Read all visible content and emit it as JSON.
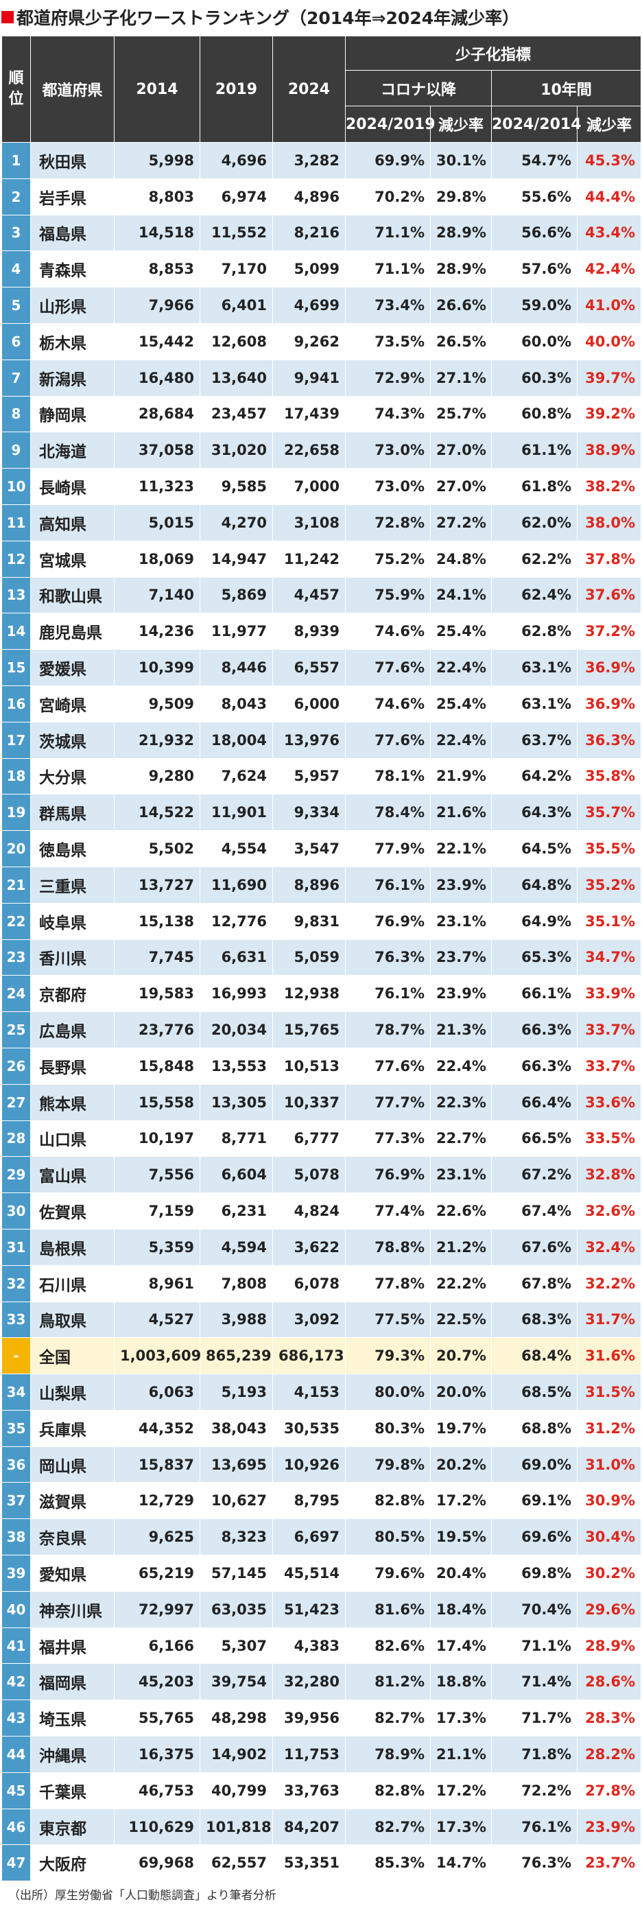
{
  "title": "都道府県少子化ワーストランキング（2014年⇒2024年減少率）",
  "colors": {
    "title_square": "#e60012",
    "header_bg": "#3b3b3b",
    "rank_bg": "#4a9ac9",
    "row_alt_bg": "#d9e8f3",
    "national_rank_bg": "#f4b400",
    "national_row_bg": "#fdf5d3",
    "decline_text": "#e0261d"
  },
  "headers": {
    "rank": "順位",
    "prefecture": "都道府県",
    "y2014": "2014",
    "y2019": "2019",
    "y2024": "2024",
    "indicator_group": "少子化指標",
    "covid_group": "コロナ以降",
    "ten_year_group": "10年間",
    "ratio_2024_2019": "2024/2019",
    "decline_rate_covid": "減少率",
    "ratio_2024_2014": "2024/2014",
    "decline_rate_10y": "減少率"
  },
  "rows": [
    {
      "rank": "1",
      "pref": "秋田県",
      "v2014": "5,998",
      "v2019": "4,696",
      "v2024": "3,282",
      "r19": "69.9%",
      "d19": "30.1%",
      "r14": "54.7%",
      "d14": "45.3%"
    },
    {
      "rank": "2",
      "pref": "岩手県",
      "v2014": "8,803",
      "v2019": "6,974",
      "v2024": "4,896",
      "r19": "70.2%",
      "d19": "29.8%",
      "r14": "55.6%",
      "d14": "44.4%"
    },
    {
      "rank": "3",
      "pref": "福島県",
      "v2014": "14,518",
      "v2019": "11,552",
      "v2024": "8,216",
      "r19": "71.1%",
      "d19": "28.9%",
      "r14": "56.6%",
      "d14": "43.4%"
    },
    {
      "rank": "4",
      "pref": "青森県",
      "v2014": "8,853",
      "v2019": "7,170",
      "v2024": "5,099",
      "r19": "71.1%",
      "d19": "28.9%",
      "r14": "57.6%",
      "d14": "42.4%"
    },
    {
      "rank": "5",
      "pref": "山形県",
      "v2014": "7,966",
      "v2019": "6,401",
      "v2024": "4,699",
      "r19": "73.4%",
      "d19": "26.6%",
      "r14": "59.0%",
      "d14": "41.0%"
    },
    {
      "rank": "6",
      "pref": "栃木県",
      "v2014": "15,442",
      "v2019": "12,608",
      "v2024": "9,262",
      "r19": "73.5%",
      "d19": "26.5%",
      "r14": "60.0%",
      "d14": "40.0%"
    },
    {
      "rank": "7",
      "pref": "新潟県",
      "v2014": "16,480",
      "v2019": "13,640",
      "v2024": "9,941",
      "r19": "72.9%",
      "d19": "27.1%",
      "r14": "60.3%",
      "d14": "39.7%"
    },
    {
      "rank": "8",
      "pref": "静岡県",
      "v2014": "28,684",
      "v2019": "23,457",
      "v2024": "17,439",
      "r19": "74.3%",
      "d19": "25.7%",
      "r14": "60.8%",
      "d14": "39.2%"
    },
    {
      "rank": "9",
      "pref": "北海道",
      "v2014": "37,058",
      "v2019": "31,020",
      "v2024": "22,658",
      "r19": "73.0%",
      "d19": "27.0%",
      "r14": "61.1%",
      "d14": "38.9%"
    },
    {
      "rank": "10",
      "pref": "長崎県",
      "v2014": "11,323",
      "v2019": "9,585",
      "v2024": "7,000",
      "r19": "73.0%",
      "d19": "27.0%",
      "r14": "61.8%",
      "d14": "38.2%"
    },
    {
      "rank": "11",
      "pref": "高知県",
      "v2014": "5,015",
      "v2019": "4,270",
      "v2024": "3,108",
      "r19": "72.8%",
      "d19": "27.2%",
      "r14": "62.0%",
      "d14": "38.0%"
    },
    {
      "rank": "12",
      "pref": "宮城県",
      "v2014": "18,069",
      "v2019": "14,947",
      "v2024": "11,242",
      "r19": "75.2%",
      "d19": "24.8%",
      "r14": "62.2%",
      "d14": "37.8%"
    },
    {
      "rank": "13",
      "pref": "和歌山県",
      "v2014": "7,140",
      "v2019": "5,869",
      "v2024": "4,457",
      "r19": "75.9%",
      "d19": "24.1%",
      "r14": "62.4%",
      "d14": "37.6%"
    },
    {
      "rank": "14",
      "pref": "鹿児島県",
      "v2014": "14,236",
      "v2019": "11,977",
      "v2024": "8,939",
      "r19": "74.6%",
      "d19": "25.4%",
      "r14": "62.8%",
      "d14": "37.2%"
    },
    {
      "rank": "15",
      "pref": "愛媛県",
      "v2014": "10,399",
      "v2019": "8,446",
      "v2024": "6,557",
      "r19": "77.6%",
      "d19": "22.4%",
      "r14": "63.1%",
      "d14": "36.9%"
    },
    {
      "rank": "16",
      "pref": "宮崎県",
      "v2014": "9,509",
      "v2019": "8,043",
      "v2024": "6,000",
      "r19": "74.6%",
      "d19": "25.4%",
      "r14": "63.1%",
      "d14": "36.9%"
    },
    {
      "rank": "17",
      "pref": "茨城県",
      "v2014": "21,932",
      "v2019": "18,004",
      "v2024": "13,976",
      "r19": "77.6%",
      "d19": "22.4%",
      "r14": "63.7%",
      "d14": "36.3%"
    },
    {
      "rank": "18",
      "pref": "大分県",
      "v2014": "9,280",
      "v2019": "7,624",
      "v2024": "5,957",
      "r19": "78.1%",
      "d19": "21.9%",
      "r14": "64.2%",
      "d14": "35.8%"
    },
    {
      "rank": "19",
      "pref": "群馬県",
      "v2014": "14,522",
      "v2019": "11,901",
      "v2024": "9,334",
      "r19": "78.4%",
      "d19": "21.6%",
      "r14": "64.3%",
      "d14": "35.7%"
    },
    {
      "rank": "20",
      "pref": "徳島県",
      "v2014": "5,502",
      "v2019": "4,554",
      "v2024": "3,547",
      "r19": "77.9%",
      "d19": "22.1%",
      "r14": "64.5%",
      "d14": "35.5%"
    },
    {
      "rank": "21",
      "pref": "三重県",
      "v2014": "13,727",
      "v2019": "11,690",
      "v2024": "8,896",
      "r19": "76.1%",
      "d19": "23.9%",
      "r14": "64.8%",
      "d14": "35.2%"
    },
    {
      "rank": "22",
      "pref": "岐阜県",
      "v2014": "15,138",
      "v2019": "12,776",
      "v2024": "9,831",
      "r19": "76.9%",
      "d19": "23.1%",
      "r14": "64.9%",
      "d14": "35.1%"
    },
    {
      "rank": "23",
      "pref": "香川県",
      "v2014": "7,745",
      "v2019": "6,631",
      "v2024": "5,059",
      "r19": "76.3%",
      "d19": "23.7%",
      "r14": "65.3%",
      "d14": "34.7%"
    },
    {
      "rank": "24",
      "pref": "京都府",
      "v2014": "19,583",
      "v2019": "16,993",
      "v2024": "12,938",
      "r19": "76.1%",
      "d19": "23.9%",
      "r14": "66.1%",
      "d14": "33.9%"
    },
    {
      "rank": "25",
      "pref": "広島県",
      "v2014": "23,776",
      "v2019": "20,034",
      "v2024": "15,765",
      "r19": "78.7%",
      "d19": "21.3%",
      "r14": "66.3%",
      "d14": "33.7%"
    },
    {
      "rank": "26",
      "pref": "長野県",
      "v2014": "15,848",
      "v2019": "13,553",
      "v2024": "10,513",
      "r19": "77.6%",
      "d19": "22.4%",
      "r14": "66.3%",
      "d14": "33.7%"
    },
    {
      "rank": "27",
      "pref": "熊本県",
      "v2014": "15,558",
      "v2019": "13,305",
      "v2024": "10,337",
      "r19": "77.7%",
      "d19": "22.3%",
      "r14": "66.4%",
      "d14": "33.6%"
    },
    {
      "rank": "28",
      "pref": "山口県",
      "v2014": "10,197",
      "v2019": "8,771",
      "v2024": "6,777",
      "r19": "77.3%",
      "d19": "22.7%",
      "r14": "66.5%",
      "d14": "33.5%"
    },
    {
      "rank": "29",
      "pref": "富山県",
      "v2014": "7,556",
      "v2019": "6,604",
      "v2024": "5,078",
      "r19": "76.9%",
      "d19": "23.1%",
      "r14": "67.2%",
      "d14": "32.8%"
    },
    {
      "rank": "30",
      "pref": "佐賀県",
      "v2014": "7,159",
      "v2019": "6,231",
      "v2024": "4,824",
      "r19": "77.4%",
      "d19": "22.6%",
      "r14": "67.4%",
      "d14": "32.6%"
    },
    {
      "rank": "31",
      "pref": "島根県",
      "v2014": "5,359",
      "v2019": "4,594",
      "v2024": "3,622",
      "r19": "78.8%",
      "d19": "21.2%",
      "r14": "67.6%",
      "d14": "32.4%"
    },
    {
      "rank": "32",
      "pref": "石川県",
      "v2014": "8,961",
      "v2019": "7,808",
      "v2024": "6,078",
      "r19": "77.8%",
      "d19": "22.2%",
      "r14": "67.8%",
      "d14": "32.2%"
    },
    {
      "rank": "33",
      "pref": "鳥取県",
      "v2014": "4,527",
      "v2019": "3,988",
      "v2024": "3,092",
      "r19": "77.5%",
      "d19": "22.5%",
      "r14": "68.3%",
      "d14": "31.7%"
    },
    {
      "rank": "-",
      "pref": "全国",
      "v2014": "1,003,609",
      "v2019": "865,239",
      "v2024": "686,173",
      "r19": "79.3%",
      "d19": "20.7%",
      "r14": "68.4%",
      "d14": "31.6%",
      "national": true
    },
    {
      "rank": "34",
      "pref": "山梨県",
      "v2014": "6,063",
      "v2019": "5,193",
      "v2024": "4,153",
      "r19": "80.0%",
      "d19": "20.0%",
      "r14": "68.5%",
      "d14": "31.5%"
    },
    {
      "rank": "35",
      "pref": "兵庫県",
      "v2014": "44,352",
      "v2019": "38,043",
      "v2024": "30,535",
      "r19": "80.3%",
      "d19": "19.7%",
      "r14": "68.8%",
      "d14": "31.2%"
    },
    {
      "rank": "36",
      "pref": "岡山県",
      "v2014": "15,837",
      "v2019": "13,695",
      "v2024": "10,926",
      "r19": "79.8%",
      "d19": "20.2%",
      "r14": "69.0%",
      "d14": "31.0%"
    },
    {
      "rank": "37",
      "pref": "滋賀県",
      "v2014": "12,729",
      "v2019": "10,627",
      "v2024": "8,795",
      "r19": "82.8%",
      "d19": "17.2%",
      "r14": "69.1%",
      "d14": "30.9%"
    },
    {
      "rank": "38",
      "pref": "奈良県",
      "v2014": "9,625",
      "v2019": "8,323",
      "v2024": "6,697",
      "r19": "80.5%",
      "d19": "19.5%",
      "r14": "69.6%",
      "d14": "30.4%"
    },
    {
      "rank": "39",
      "pref": "愛知県",
      "v2014": "65,219",
      "v2019": "57,145",
      "v2024": "45,514",
      "r19": "79.6%",
      "d19": "20.4%",
      "r14": "69.8%",
      "d14": "30.2%"
    },
    {
      "rank": "40",
      "pref": "神奈川県",
      "v2014": "72,997",
      "v2019": "63,035",
      "v2024": "51,423",
      "r19": "81.6%",
      "d19": "18.4%",
      "r14": "70.4%",
      "d14": "29.6%"
    },
    {
      "rank": "41",
      "pref": "福井県",
      "v2014": "6,166",
      "v2019": "5,307",
      "v2024": "4,383",
      "r19": "82.6%",
      "d19": "17.4%",
      "r14": "71.1%",
      "d14": "28.9%"
    },
    {
      "rank": "42",
      "pref": "福岡県",
      "v2014": "45,203",
      "v2019": "39,754",
      "v2024": "32,280",
      "r19": "81.2%",
      "d19": "18.8%",
      "r14": "71.4%",
      "d14": "28.6%"
    },
    {
      "rank": "43",
      "pref": "埼玉県",
      "v2014": "55,765",
      "v2019": "48,298",
      "v2024": "39,956",
      "r19": "82.7%",
      "d19": "17.3%",
      "r14": "71.7%",
      "d14": "28.3%"
    },
    {
      "rank": "44",
      "pref": "沖縄県",
      "v2014": "16,375",
      "v2019": "14,902",
      "v2024": "11,753",
      "r19": "78.9%",
      "d19": "21.1%",
      "r14": "71.8%",
      "d14": "28.2%"
    },
    {
      "rank": "45",
      "pref": "千葉県",
      "v2014": "46,753",
      "v2019": "40,799",
      "v2024": "33,763",
      "r19": "82.8%",
      "d19": "17.2%",
      "r14": "72.2%",
      "d14": "27.8%"
    },
    {
      "rank": "46",
      "pref": "東京都",
      "v2014": "110,629",
      "v2019": "101,818",
      "v2024": "84,207",
      "r19": "82.7%",
      "d19": "17.3%",
      "r14": "76.1%",
      "d14": "23.9%"
    },
    {
      "rank": "47",
      "pref": "大阪府",
      "v2014": "69,968",
      "v2019": "62,557",
      "v2024": "53,351",
      "r19": "85.3%",
      "d19": "14.7%",
      "r14": "76.3%",
      "d14": "23.7%"
    }
  ],
  "source": "（出所）厚生労働省「人口動態調査」より筆者分析"
}
